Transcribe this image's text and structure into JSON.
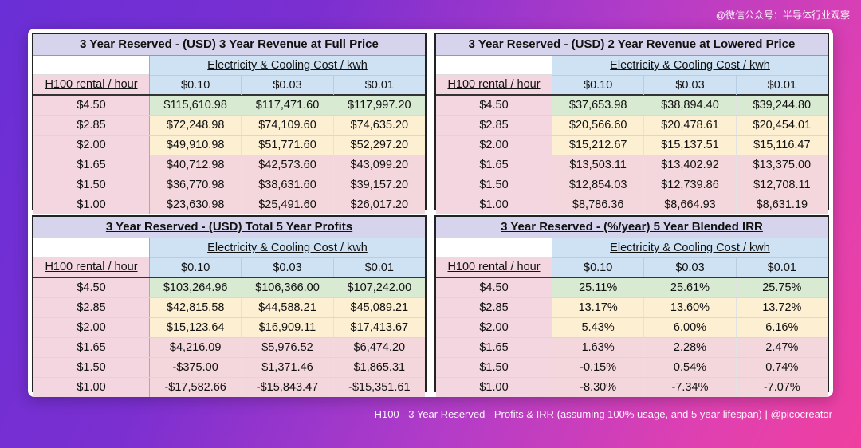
{
  "watermark": "@微信公众号：半导体行业观察",
  "caption": "H100 - 3 Year Reserved - Profits & IRR (assuming 100% usage, and 5 year lifespan) | @picocreator",
  "colors": {
    "green": "#d9ead3",
    "yellow": "#fdefd2",
    "red": "#f4d7dc",
    "header_blue": "#cfe2f3",
    "title_purple": "#d6d3ec"
  },
  "chart_data": [
    {
      "type": "table",
      "title": "3 Year Reserved - (USD) 3 Year Revenue at Full Price",
      "row_header": "H100 rental / hour",
      "col_group": "Electricity & Cooling Cost / kwh",
      "cols": [
        "$0.10",
        "$0.03",
        "$0.01"
      ],
      "rows": [
        {
          "label": "$4.50",
          "values": [
            "$115,610.98",
            "$117,471.60",
            "$117,997.20"
          ],
          "tone": "green"
        },
        {
          "label": "$2.85",
          "values": [
            "$72,248.98",
            "$74,109.60",
            "$74,635.20"
          ],
          "tone": "yellow"
        },
        {
          "label": "$2.00",
          "values": [
            "$49,910.98",
            "$51,771.60",
            "$52,297.20"
          ],
          "tone": "yellow"
        },
        {
          "label": "$1.65",
          "values": [
            "$40,712.98",
            "$42,573.60",
            "$43,099.20"
          ],
          "tone": "red"
        },
        {
          "label": "$1.50",
          "values": [
            "$36,770.98",
            "$38,631.60",
            "$39,157.20"
          ],
          "tone": "red"
        },
        {
          "label": "$1.00",
          "values": [
            "$23,630.98",
            "$25,491.60",
            "$26,017.20"
          ],
          "tone": "red"
        }
      ]
    },
    {
      "type": "table",
      "title": "3 Year Reserved - (USD) 2 Year Revenue at Lowered Price",
      "row_header": "H100 rental / hour",
      "col_group": "Electricity & Cooling Cost / kwh",
      "cols": [
        "$0.10",
        "$0.03",
        "$0.01"
      ],
      "rows": [
        {
          "label": "$4.50",
          "values": [
            "$37,653.98",
            "$38,894.40",
            "$39,244.80"
          ],
          "tone": "green"
        },
        {
          "label": "$2.85",
          "values": [
            "$20,566.60",
            "$20,478.61",
            "$20,454.01"
          ],
          "tone": "yellow"
        },
        {
          "label": "$2.00",
          "values": [
            "$15,212.67",
            "$15,137.51",
            "$15,116.47"
          ],
          "tone": "yellow"
        },
        {
          "label": "$1.65",
          "values": [
            "$13,503.11",
            "$13,402.92",
            "$13,375.00"
          ],
          "tone": "red"
        },
        {
          "label": "$1.50",
          "values": [
            "$12,854.03",
            "$12,739.86",
            "$12,708.11"
          ],
          "tone": "red"
        },
        {
          "label": "$1.00",
          "values": [
            "$8,786.36",
            "$8,664.93",
            "$8,631.19"
          ],
          "tone": "red"
        }
      ]
    },
    {
      "type": "table",
      "title": "3 Year Reserved - (USD) Total 5 Year Profits",
      "row_header": "H100 rental / hour",
      "col_group": "Electricity & Cooling Cost / kwh",
      "cols": [
        "$0.10",
        "$0.03",
        "$0.01"
      ],
      "rows": [
        {
          "label": "$4.50",
          "values": [
            "$103,264.96",
            "$106,366.00",
            "$107,242.00"
          ],
          "tone": "green"
        },
        {
          "label": "$2.85",
          "values": [
            "$42,815.58",
            "$44,588.21",
            "$45,089.21"
          ],
          "tone": "yellow"
        },
        {
          "label": "$2.00",
          "values": [
            "$15,123.64",
            "$16,909.11",
            "$17,413.67"
          ],
          "tone": "yellow"
        },
        {
          "label": "$1.65",
          "values": [
            "$4,216.09",
            "$5,976.52",
            "$6,474.20"
          ],
          "tone": "red"
        },
        {
          "label": "$1.50",
          "values": [
            "-$375.00",
            "$1,371.46",
            "$1,865.31"
          ],
          "tone": "red"
        },
        {
          "label": "$1.00",
          "values": [
            "-$17,582.66",
            "-$15,843.47",
            "-$15,351.61"
          ],
          "tone": "red"
        }
      ]
    },
    {
      "type": "table",
      "title": "3 Year Reserved - (%/year) 5 Year Blended IRR",
      "row_header": "H100 rental / hour",
      "col_group": "Electricity & Cooling Cost / kwh",
      "cols": [
        "$0.10",
        "$0.03",
        "$0.01"
      ],
      "rows": [
        {
          "label": "$4.50",
          "values": [
            "25.11%",
            "25.61%",
            "25.75%"
          ],
          "tone": "green"
        },
        {
          "label": "$2.85",
          "values": [
            "13.17%",
            "13.60%",
            "13.72%"
          ],
          "tone": "yellow"
        },
        {
          "label": "$2.00",
          "values": [
            "5.43%",
            "6.00%",
            "6.16%"
          ],
          "tone": "yellow"
        },
        {
          "label": "$1.65",
          "values": [
            "1.63%",
            "2.28%",
            "2.47%"
          ],
          "tone": "red"
        },
        {
          "label": "$1.50",
          "values": [
            "-0.15%",
            "0.54%",
            "0.74%"
          ],
          "tone": "red"
        },
        {
          "label": "$1.00",
          "values": [
            "-8.30%",
            "-7.34%",
            "-7.07%"
          ],
          "tone": "red"
        }
      ]
    }
  ]
}
